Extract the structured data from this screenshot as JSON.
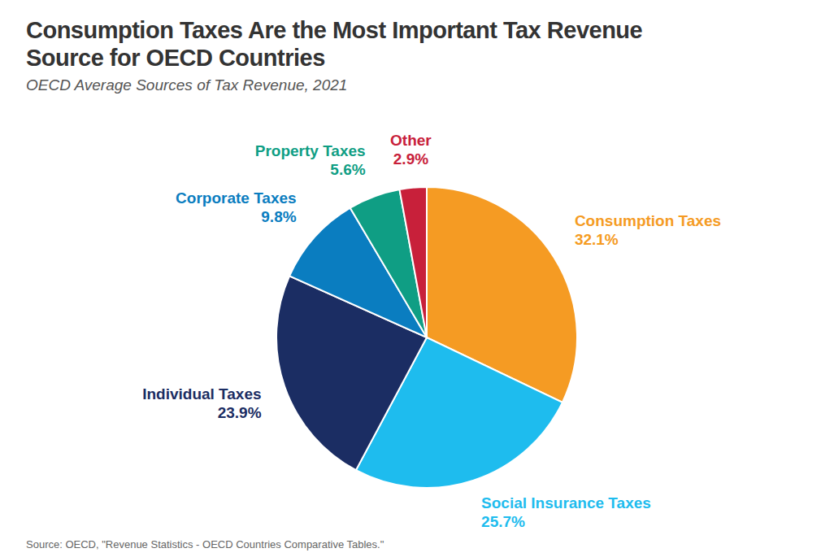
{
  "chart_data": {
    "type": "pie",
    "title": "Consumption Taxes Are the Most Important Tax Revenue Source for OECD Countries",
    "subtitle": "OECD Average Sources of Tax Revenue, 2021",
    "source": "Source: OECD, \"Revenue Statistics - OECD Countries Comparative Tables.\"",
    "categories": [
      "Consumption Taxes",
      "Social Insurance Taxes",
      "Individual Taxes",
      "Corporate Taxes",
      "Property Taxes",
      "Other"
    ],
    "values": [
      32.1,
      25.7,
      23.9,
      9.8,
      5.6,
      2.9
    ],
    "value_labels": [
      "32.1%",
      "25.7%",
      "23.9%",
      "9.8%",
      "5.6%",
      "2.9%"
    ],
    "colors": [
      "#f59b23",
      "#1ebcee",
      "#1b2d63",
      "#0a7dc0",
      "#0f9e84",
      "#c8203a"
    ],
    "data_labels": true
  }
}
